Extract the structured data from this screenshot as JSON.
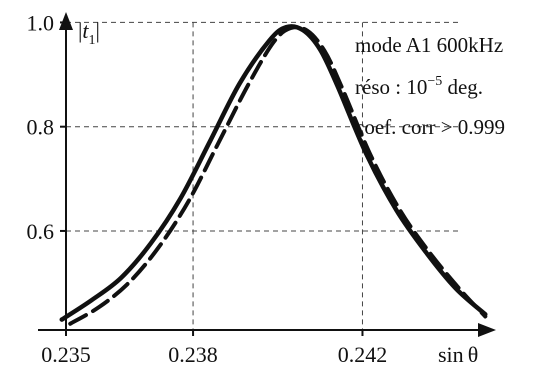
{
  "chart_data": {
    "type": "line",
    "ylabel_var": "t",
    "ylabel_sub": "1",
    "xlabel_text": "sin",
    "xlabel_symbol": "θ",
    "xticks": [
      0.235,
      0.238,
      0.242
    ],
    "xtick_labels": [
      "0.235",
      "0.238",
      "0.242"
    ],
    "yticks": [
      0.6,
      0.8,
      1.0
    ],
    "ytick_labels": [
      "0.6",
      "0.8",
      "1.0"
    ],
    "xlim": [
      0.235,
      0.2452
    ],
    "ylim": [
      0.41,
      1.02
    ],
    "grid": true,
    "annotations": {
      "line1": "mode A1 600kHz",
      "line2_prefix": "réso  : 10",
      "line2_sup": "−5",
      "line2_suffix": " deg.",
      "line3": "coef. corr > 0.999"
    },
    "series": [
      {
        "style": "solid",
        "x": [
          0.2349,
          0.2356,
          0.2363,
          0.237,
          0.2377,
          0.2384,
          0.2391,
          0.2398,
          0.2402,
          0.2406,
          0.241,
          0.2414,
          0.2421,
          0.2428,
          0.2435,
          0.2442,
          0.2449
        ],
        "y": [
          0.43,
          0.467,
          0.51,
          0.576,
          0.662,
          0.772,
          0.883,
          0.965,
          0.991,
          0.985,
          0.948,
          0.88,
          0.746,
          0.64,
          0.559,
          0.49,
          0.44
        ]
      },
      {
        "style": "dashed",
        "x": [
          0.2351,
          0.2358,
          0.2365,
          0.2372,
          0.2379,
          0.2386,
          0.2393,
          0.2399,
          0.2403,
          0.2407,
          0.2411,
          0.2415,
          0.2422,
          0.2429,
          0.2436,
          0.2443,
          0.2449
        ],
        "y": [
          0.422,
          0.455,
          0.502,
          0.57,
          0.658,
          0.769,
          0.88,
          0.962,
          0.989,
          0.984,
          0.946,
          0.878,
          0.744,
          0.638,
          0.557,
          0.488,
          0.436
        ]
      }
    ]
  }
}
